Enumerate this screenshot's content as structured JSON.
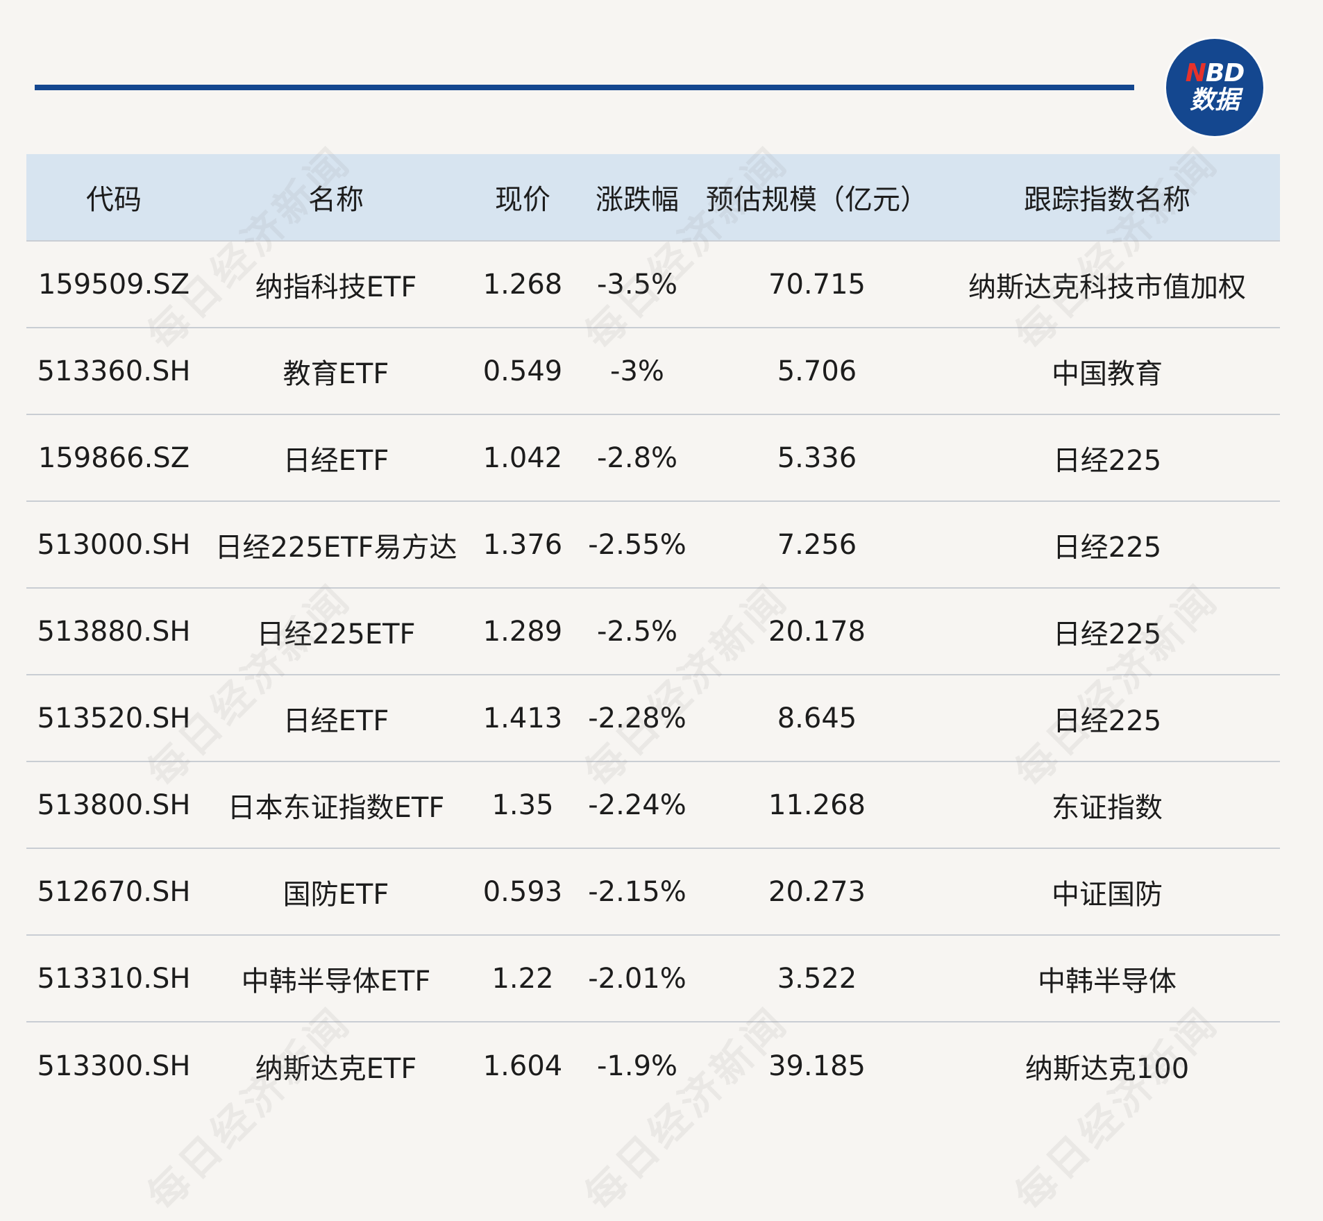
{
  "logo": {
    "line1_n": "N",
    "line1_rest": "BD",
    "line2": "数据"
  },
  "watermark_text": "每日经济新闻",
  "table": {
    "headers": [
      "代码",
      "名称",
      "现价",
      "涨跌幅",
      "预估规模（亿元）",
      "跟踪指数名称"
    ],
    "rows": [
      [
        "159509.SZ",
        "纳指科技ETF",
        "1.268",
        "-3.5%",
        "70.715",
        "纳斯达克科技市值加权"
      ],
      [
        "513360.SH",
        "教育ETF",
        "0.549",
        "-3%",
        "5.706",
        "中国教育"
      ],
      [
        "159866.SZ",
        "日经ETF",
        "1.042",
        "-2.8%",
        "5.336",
        "日经225"
      ],
      [
        "513000.SH",
        "日经225ETF易方达",
        "1.376",
        "-2.55%",
        "7.256",
        "日经225"
      ],
      [
        "513880.SH",
        "日经225ETF",
        "1.289",
        "-2.5%",
        "20.178",
        "日经225"
      ],
      [
        "513520.SH",
        "日经ETF",
        "1.413",
        "-2.28%",
        "8.645",
        "日经225"
      ],
      [
        "513800.SH",
        "日本东证指数ETF",
        "1.35",
        "-2.24%",
        "11.268",
        "东证指数"
      ],
      [
        "512670.SH",
        "国防ETF",
        "0.593",
        "-2.15%",
        "20.273",
        "中证国防"
      ],
      [
        "513310.SH",
        "中韩半导体ETF",
        "1.22",
        "-2.01%",
        "3.522",
        "中韩半导体"
      ],
      [
        "513300.SH",
        "纳斯达克ETF",
        "1.604",
        "-1.9%",
        "39.185",
        "纳斯达克100"
      ]
    ]
  }
}
